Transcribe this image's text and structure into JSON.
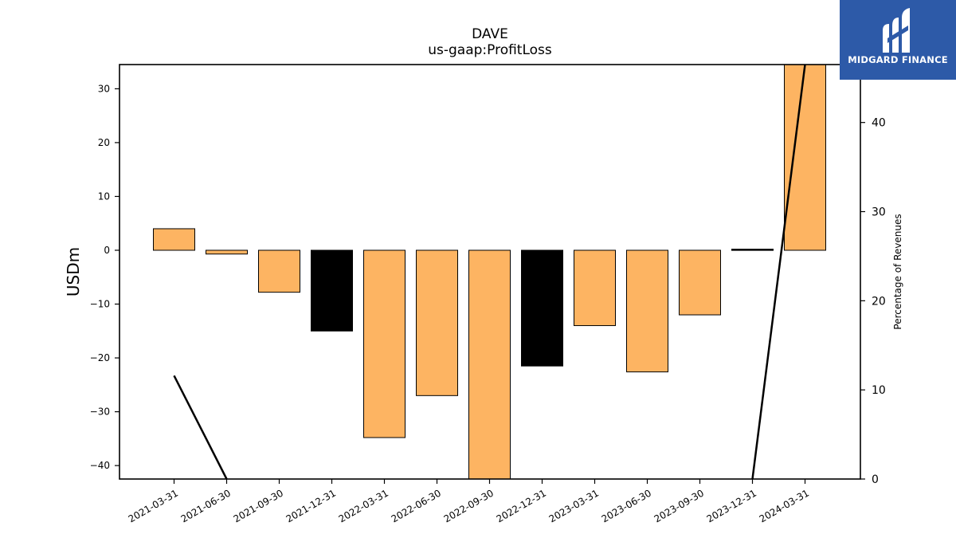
{
  "chart_data": {
    "type": "bar",
    "title": "DAVE",
    "subtitle": "us-gaap:ProfitLoss",
    "ylabel": "USDm",
    "y2label": "Percentage of Revenues",
    "ylim": [
      -42.5,
      34.5
    ],
    "y2lim": [
      0,
      46.5
    ],
    "yticks": [
      30,
      20,
      10,
      0,
      -10,
      -20,
      -30,
      -40
    ],
    "y2ticks": [
      0,
      10,
      20,
      30,
      40
    ],
    "categories": [
      "2021-03-31",
      "2021-06-30",
      "2021-09-30",
      "2021-12-31",
      "2022-03-31",
      "2022-06-30",
      "2022-09-30",
      "2022-12-31",
      "2023-03-31",
      "2023-06-30",
      "2023-09-30",
      "2023-12-31",
      "2024-03-31"
    ],
    "values": [
      4.0,
      -0.7,
      -7.8,
      -15.0,
      -34.8,
      -27.0,
      -42.5,
      -21.5,
      -14.0,
      -22.6,
      -12.0,
      0.2,
      34.5
    ],
    "bar_colors": [
      "#fdb462",
      "#fdb462",
      "#fdb462",
      "#000000",
      "#fdb462",
      "#fdb462",
      "#fdb462",
      "#000000",
      "#fdb462",
      "#fdb462",
      "#fdb462",
      "#000000",
      "#fdb462"
    ],
    "line": {
      "axis": "secondary",
      "color": "#000000",
      "segments": [
        [
          [
            "2021-03-31",
            11.6
          ],
          [
            "2021-06-30",
            0
          ]
        ],
        [
          [
            "2023-12-31",
            0
          ],
          [
            "2024-03-31",
            46.5
          ]
        ]
      ]
    },
    "grid": false,
    "legend": "none"
  },
  "logo": {
    "text": "MIDGARD FINANCE",
    "color": "#2d5aa8"
  }
}
